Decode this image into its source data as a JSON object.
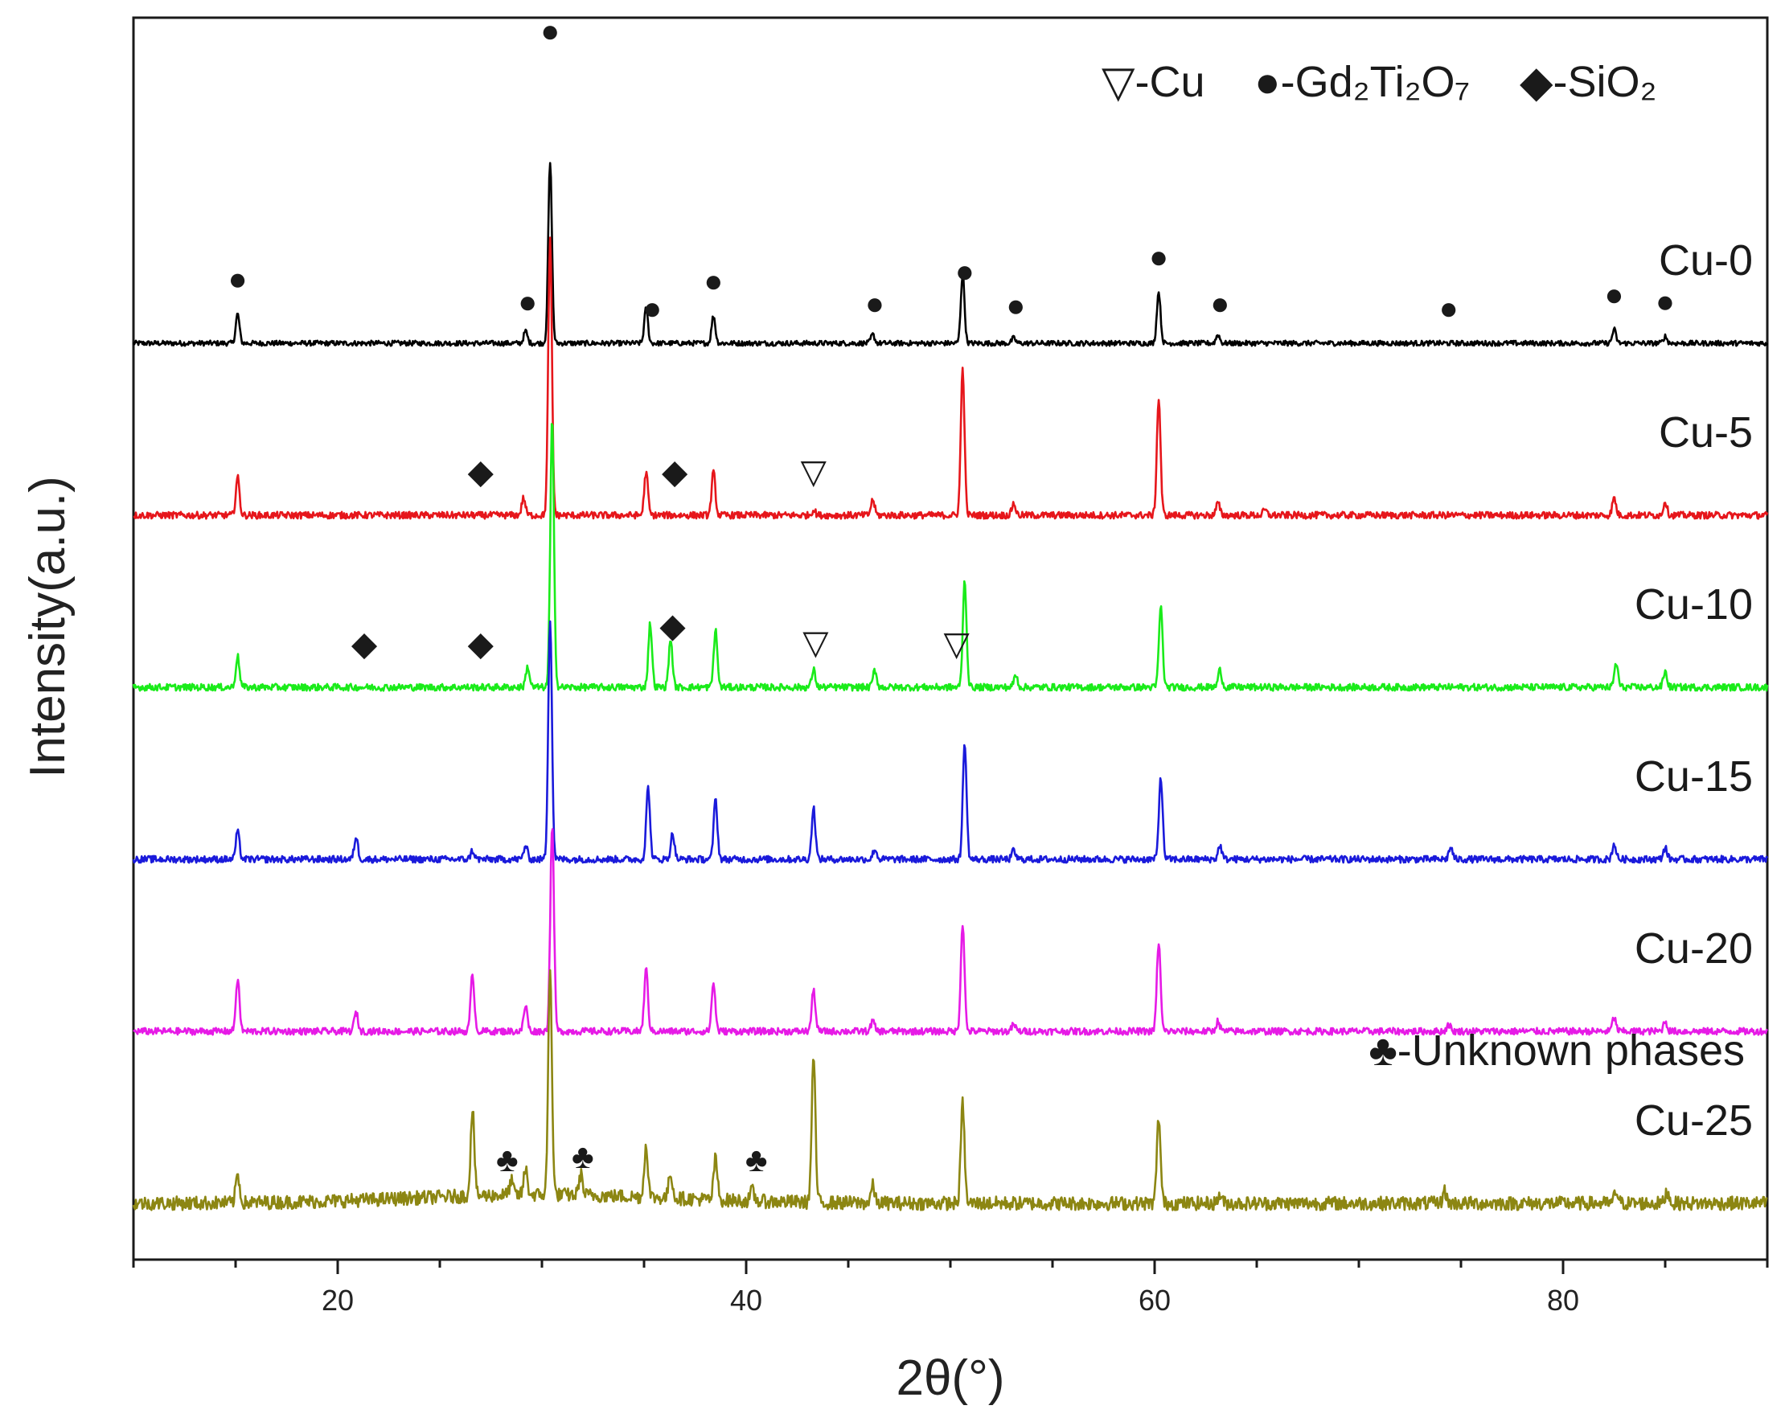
{
  "chart_data": {
    "type": "line",
    "title": "",
    "xlabel": "2θ(°)",
    "ylabel": "Intensity(a.u.)",
    "xlim": [
      10,
      90
    ],
    "x_ticks": [
      "20",
      "40",
      "60",
      "80"
    ],
    "x_tick_values": [
      20,
      40,
      60,
      80
    ],
    "grid": false,
    "y_ticks_shown": false,
    "legend": {
      "placement": "top-right",
      "entries": [
        {
          "symbol": "▽",
          "text": "-Cu"
        },
        {
          "symbol": "●",
          "text": "-Gd₂Ti₂O₇"
        },
        {
          "symbol": "◆",
          "text": "-SiO₂"
        }
      ]
    },
    "extra_legend": {
      "symbol": "♣",
      "text": "-Unknown phases",
      "placement": "above Cu-25"
    },
    "series": [
      {
        "name": "Cu-0",
        "color": "#000000",
        "baseline": 5.0,
        "noise": 0.015,
        "peaks": [
          {
            "x": 15.1,
            "h": 0.17
          },
          {
            "x": 29.2,
            "h": 0.07
          },
          {
            "x": 30.4,
            "h": 1.05
          },
          {
            "x": 35.1,
            "h": 0.2
          },
          {
            "x": 38.4,
            "h": 0.16
          },
          {
            "x": 46.2,
            "h": 0.05
          },
          {
            "x": 50.6,
            "h": 0.4
          },
          {
            "x": 53.1,
            "h": 0.03
          },
          {
            "x": 60.2,
            "h": 0.3
          },
          {
            "x": 63.1,
            "h": 0.05
          },
          {
            "x": 82.5,
            "h": 0.08
          },
          {
            "x": 85.0,
            "h": 0.04
          }
        ],
        "markers": [
          {
            "x": 15.1,
            "symbol": "●"
          },
          {
            "x": 29.3,
            "symbol": "●"
          },
          {
            "x": 30.4,
            "symbol": "●"
          },
          {
            "x": 35.4,
            "symbol": "●"
          },
          {
            "x": 38.4,
            "symbol": "●"
          },
          {
            "x": 46.3,
            "symbol": "●"
          },
          {
            "x": 50.7,
            "symbol": "●"
          },
          {
            "x": 53.2,
            "symbol": "●"
          },
          {
            "x": 60.2,
            "symbol": "●"
          },
          {
            "x": 63.2,
            "symbol": "●"
          },
          {
            "x": 74.4,
            "symbol": "●"
          },
          {
            "x": 82.5,
            "symbol": "●"
          },
          {
            "x": 85.0,
            "symbol": "●"
          }
        ]
      },
      {
        "name": "Cu-5",
        "color": "#e6161b",
        "baseline": 4.0,
        "noise": 0.02,
        "peaks": [
          {
            "x": 15.1,
            "h": 0.22
          },
          {
            "x": 29.1,
            "h": 0.1
          },
          {
            "x": 30.4,
            "h": 1.6
          },
          {
            "x": 35.1,
            "h": 0.25
          },
          {
            "x": 38.4,
            "h": 0.25
          },
          {
            "x": 43.3,
            "h": 0.03
          },
          {
            "x": 46.2,
            "h": 0.09
          },
          {
            "x": 50.6,
            "h": 0.85
          },
          {
            "x": 53.1,
            "h": 0.07
          },
          {
            "x": 60.2,
            "h": 0.68
          },
          {
            "x": 63.1,
            "h": 0.07
          },
          {
            "x": 65.4,
            "h": 0.03
          },
          {
            "x": 82.5,
            "h": 0.1
          },
          {
            "x": 85.0,
            "h": 0.08
          }
        ],
        "markers": [
          {
            "x": 27.0,
            "symbol": "◆"
          },
          {
            "x": 36.5,
            "symbol": "◆"
          },
          {
            "x": 43.3,
            "symbol": "▽"
          }
        ]
      },
      {
        "name": "Cu-10",
        "color": "#1aeb1a",
        "baseline": 3.0,
        "noise": 0.02,
        "peaks": [
          {
            "x": 15.1,
            "h": 0.18
          },
          {
            "x": 29.3,
            "h": 0.12
          },
          {
            "x": 30.5,
            "h": 1.55
          },
          {
            "x": 35.3,
            "h": 0.37
          },
          {
            "x": 36.3,
            "h": 0.28
          },
          {
            "x": 38.5,
            "h": 0.33
          },
          {
            "x": 43.3,
            "h": 0.1
          },
          {
            "x": 46.3,
            "h": 0.1
          },
          {
            "x": 50.7,
            "h": 0.62
          },
          {
            "x": 53.2,
            "h": 0.07
          },
          {
            "x": 60.3,
            "h": 0.47
          },
          {
            "x": 63.2,
            "h": 0.1
          },
          {
            "x": 82.6,
            "h": 0.14
          },
          {
            "x": 85.0,
            "h": 0.09
          }
        ],
        "markers": [
          {
            "x": 21.3,
            "symbol": "◆"
          },
          {
            "x": 27.0,
            "symbol": "◆"
          },
          {
            "x": 36.4,
            "symbol": "◆"
          },
          {
            "x": 43.4,
            "symbol": "▽"
          },
          {
            "x": 50.3,
            "symbol": "▽"
          }
        ]
      },
      {
        "name": "Cu-15",
        "color": "#1a1adb",
        "baseline": 2.0,
        "noise": 0.02,
        "peaks": [
          {
            "x": 15.1,
            "h": 0.16
          },
          {
            "x": 20.9,
            "h": 0.13
          },
          {
            "x": 26.6,
            "h": 0.05
          },
          {
            "x": 29.2,
            "h": 0.08
          },
          {
            "x": 30.4,
            "h": 1.4
          },
          {
            "x": 35.2,
            "h": 0.42
          },
          {
            "x": 36.4,
            "h": 0.15
          },
          {
            "x": 38.5,
            "h": 0.35
          },
          {
            "x": 43.3,
            "h": 0.3
          },
          {
            "x": 46.3,
            "h": 0.06
          },
          {
            "x": 50.7,
            "h": 0.68
          },
          {
            "x": 53.1,
            "h": 0.05
          },
          {
            "x": 60.3,
            "h": 0.48
          },
          {
            "x": 63.2,
            "h": 0.08
          },
          {
            "x": 74.5,
            "h": 0.07
          },
          {
            "x": 82.5,
            "h": 0.09
          },
          {
            "x": 85.0,
            "h": 0.07
          }
        ],
        "markers": []
      },
      {
        "name": "Cu-20",
        "color": "#e61ae6",
        "baseline": 1.0,
        "noise": 0.02,
        "peaks": [
          {
            "x": 15.1,
            "h": 0.3
          },
          {
            "x": 20.9,
            "h": 0.11
          },
          {
            "x": 26.6,
            "h": 0.33
          },
          {
            "x": 29.2,
            "h": 0.15
          },
          {
            "x": 30.5,
            "h": 1.2
          },
          {
            "x": 35.1,
            "h": 0.36
          },
          {
            "x": 38.4,
            "h": 0.28
          },
          {
            "x": 43.3,
            "h": 0.24
          },
          {
            "x": 46.2,
            "h": 0.06
          },
          {
            "x": 50.6,
            "h": 0.63
          },
          {
            "x": 53.1,
            "h": 0.04
          },
          {
            "x": 60.2,
            "h": 0.52
          },
          {
            "x": 63.1,
            "h": 0.06
          },
          {
            "x": 74.4,
            "h": 0.04
          },
          {
            "x": 82.5,
            "h": 0.08
          },
          {
            "x": 85.0,
            "h": 0.06
          }
        ],
        "markers": []
      },
      {
        "name": "Cu-25",
        "color": "#8c8612",
        "baseline": 0.0,
        "noise": 0.04,
        "peaks": [
          {
            "x": 15.1,
            "h": 0.17
          },
          {
            "x": 26.6,
            "h": 0.5
          },
          {
            "x": 28.5,
            "h": 0.08
          },
          {
            "x": 29.2,
            "h": 0.15
          },
          {
            "x": 30.4,
            "h": 1.3
          },
          {
            "x": 31.9,
            "h": 0.12
          },
          {
            "x": 35.1,
            "h": 0.3
          },
          {
            "x": 36.3,
            "h": 0.15
          },
          {
            "x": 38.5,
            "h": 0.24
          },
          {
            "x": 40.3,
            "h": 0.06
          },
          {
            "x": 43.3,
            "h": 0.85
          },
          {
            "x": 46.2,
            "h": 0.1
          },
          {
            "x": 50.6,
            "h": 0.58
          },
          {
            "x": 60.2,
            "h": 0.5
          },
          {
            "x": 63.2,
            "h": 0.05
          },
          {
            "x": 74.2,
            "h": 0.07
          },
          {
            "x": 82.6,
            "h": 0.07
          },
          {
            "x": 85.1,
            "h": 0.07
          }
        ],
        "markers": [
          {
            "x": 28.3,
            "symbol": "♣"
          },
          {
            "x": 32.0,
            "symbol": "♣"
          },
          {
            "x": 40.5,
            "symbol": "♣"
          }
        ]
      }
    ]
  }
}
